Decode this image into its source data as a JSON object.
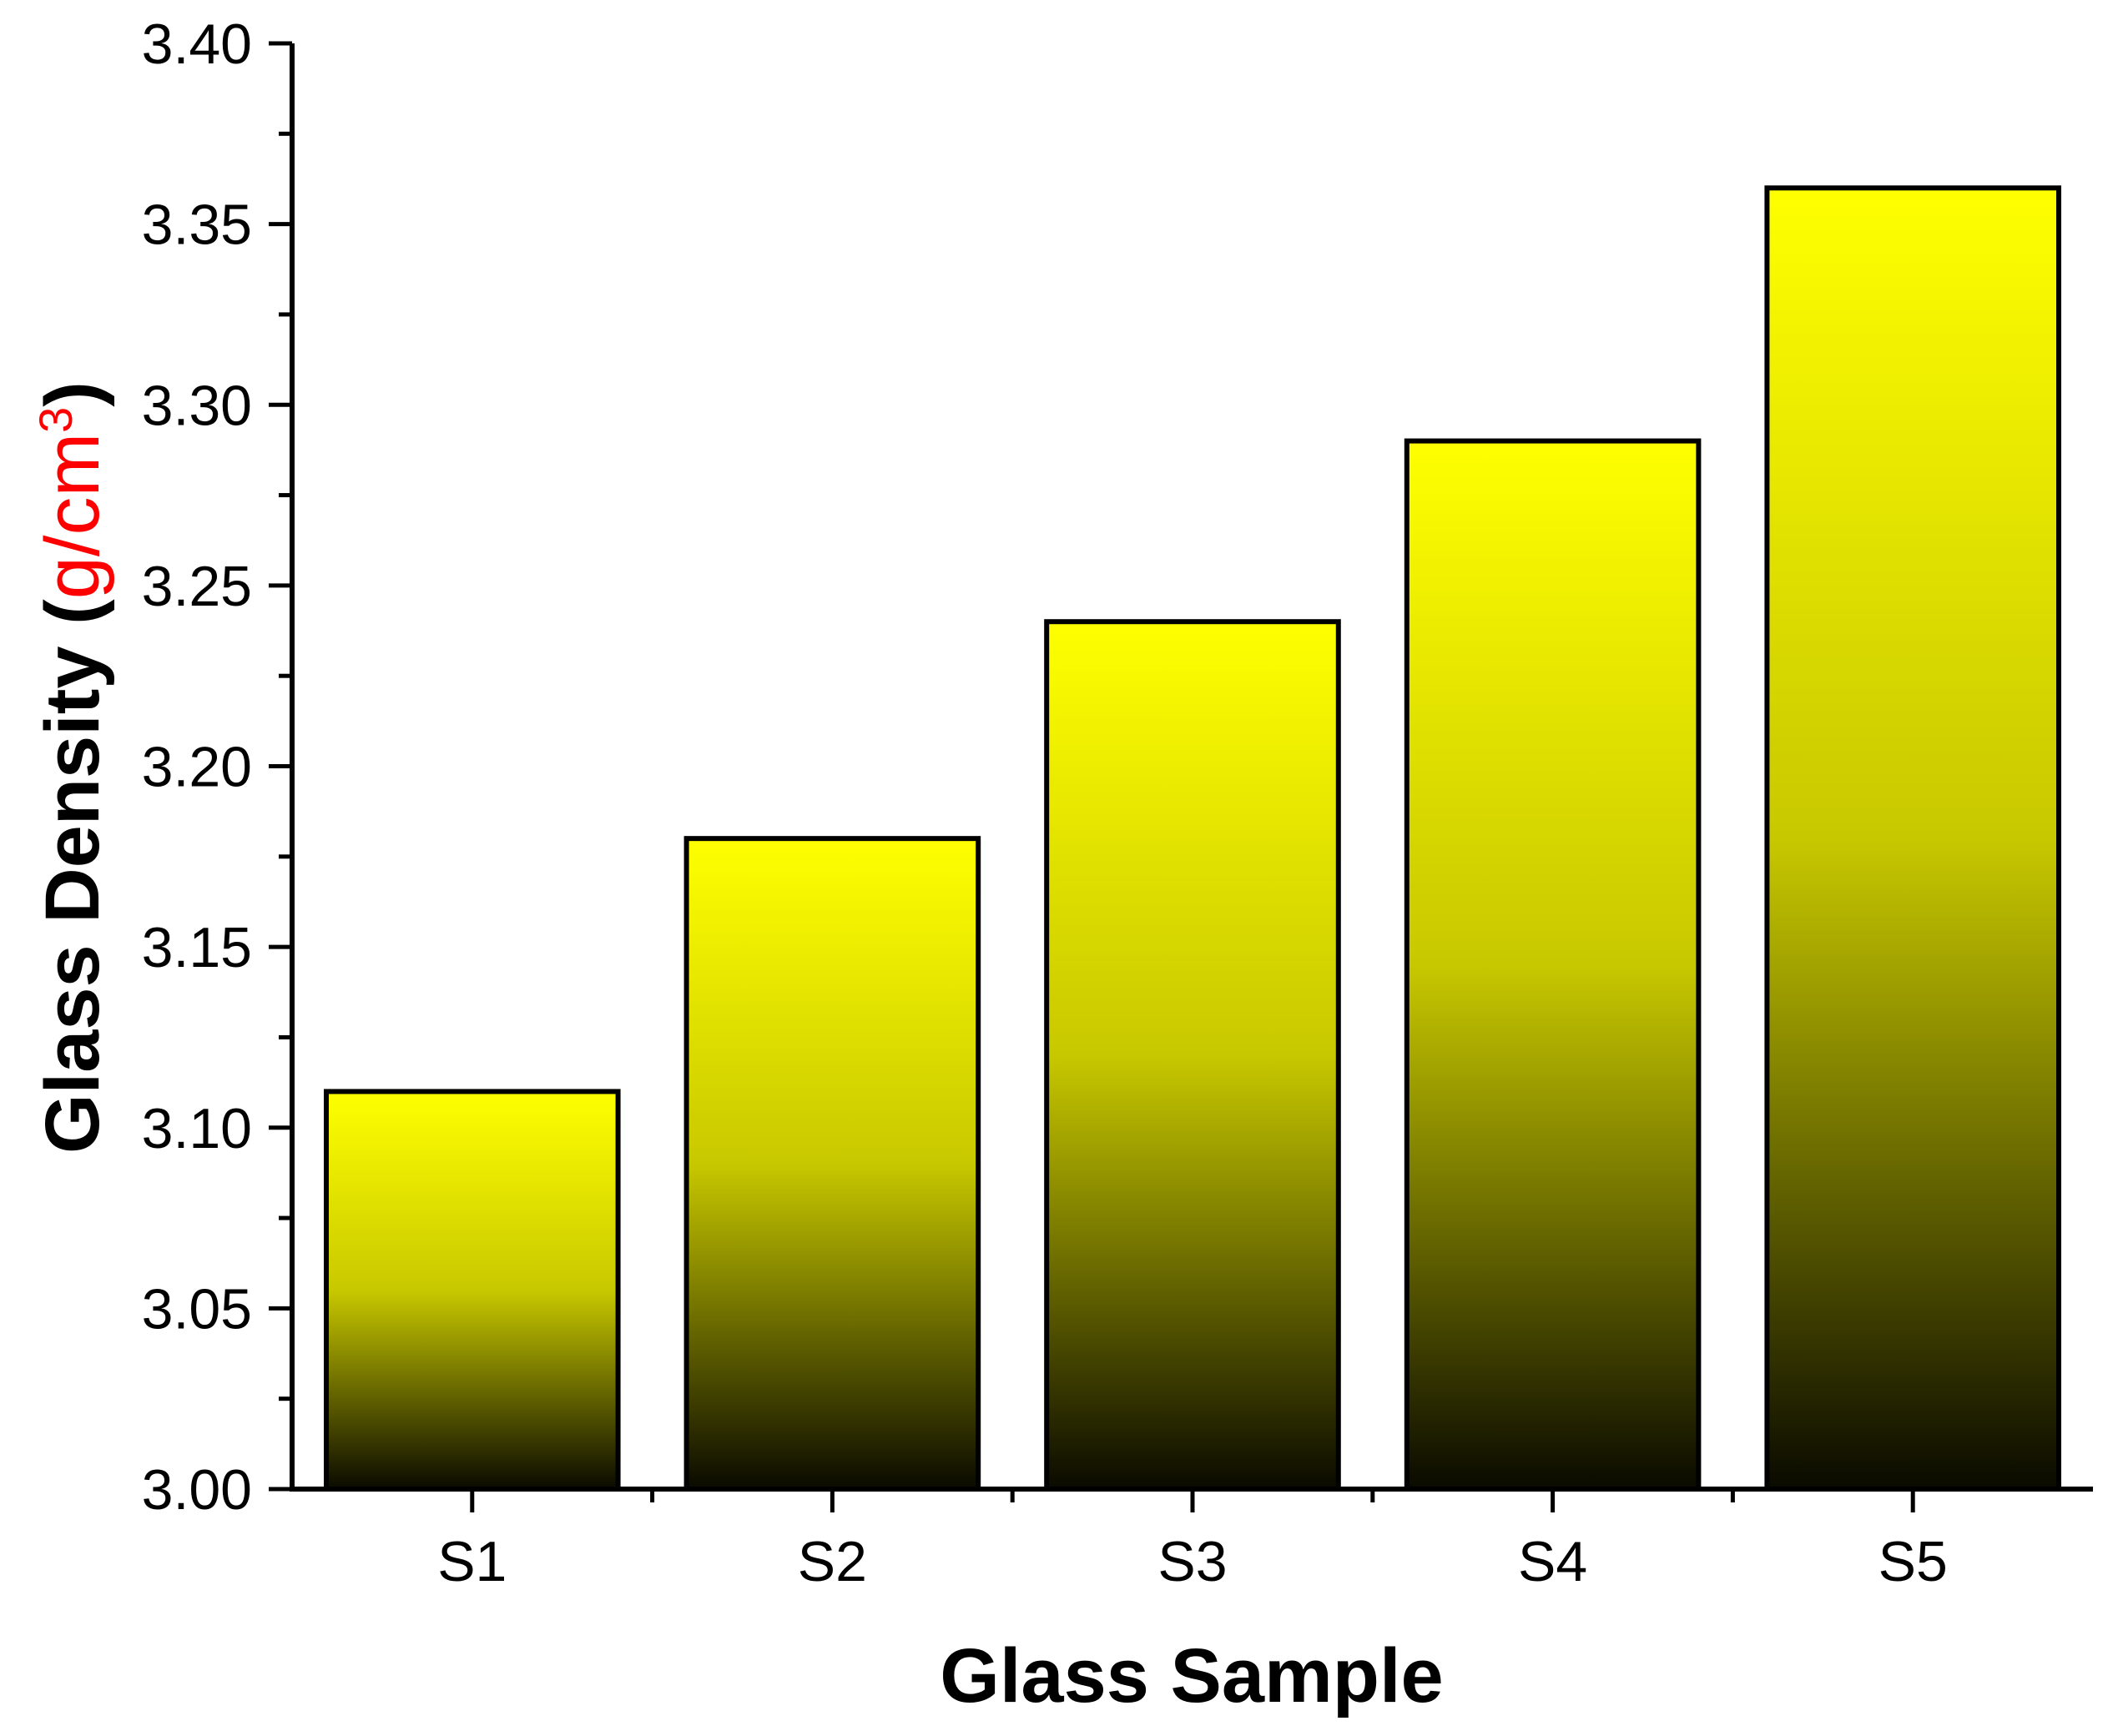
{
  "chart_data": {
    "type": "bar",
    "categories": [
      "S1",
      "S2",
      "S3",
      "S4",
      "S5"
    ],
    "values": [
      3.11,
      3.18,
      3.24,
      3.29,
      3.36
    ],
    "xlabel": "Glass Sample",
    "ylabel": {
      "prefix": "Glass Density (",
      "unit": "g/cm",
      "unit_superscript": "3",
      "suffix": ")"
    },
    "ylim": [
      3.0,
      3.4
    ],
    "y_ticks": [
      "3.00",
      "3.05",
      "3.10",
      "3.15",
      "3.20",
      "3.25",
      "3.30",
      "3.35",
      "3.40"
    ],
    "grid": false,
    "colors": {
      "bar_top": "#ffff00",
      "bar_bottom": "#0a0a00",
      "bar_outline": "#000000",
      "unit_text": "#ff0000",
      "axis": "#000000"
    }
  }
}
